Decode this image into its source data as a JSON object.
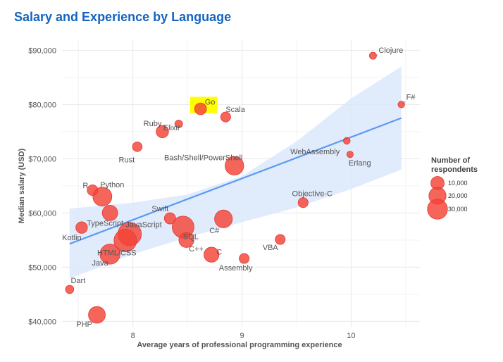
{
  "chart_data": {
    "type": "scatter",
    "title": "Salary and Experience by Language",
    "xlabel": "Average years of professional programming experience",
    "ylabel": "Median salary (USD)",
    "xlim": [
      7.35,
      10.63
    ],
    "ylim": [
      39000,
      92000
    ],
    "x_ticks": [
      8,
      9,
      10
    ],
    "x_tick_labels": [
      "8",
      "9",
      "10"
    ],
    "y_ticks": [
      40000,
      50000,
      60000,
      70000,
      80000,
      90000
    ],
    "y_tick_labels": [
      "$40,000",
      "$50,000",
      "$60,000",
      "$70,000",
      "$80,000",
      "$90,000"
    ],
    "grid": true,
    "point_color": "#f44336",
    "trend_color": "#5b9bef",
    "band_color": "#dbe8fb",
    "highlight_color": "#ffff00",
    "highlighted": "Go",
    "points": [
      {
        "name": "Clojure",
        "x": 10.2,
        "y": 89000,
        "respondents": 1000
      },
      {
        "name": "F#",
        "x": 10.46,
        "y": 80000,
        "respondents": 700
      },
      {
        "name": "Go",
        "x": 8.62,
        "y": 79200,
        "respondents": 7000
      },
      {
        "name": "Scala",
        "x": 8.85,
        "y": 77700,
        "respondents": 4000
      },
      {
        "name": "Elixir",
        "x": 8.42,
        "y": 76400,
        "respondents": 1500
      },
      {
        "name": "Ruby",
        "x": 8.27,
        "y": 75000,
        "respondents": 8000
      },
      {
        "name": "Rust",
        "x": 8.04,
        "y": 72200,
        "respondents": 3500
      },
      {
        "name": "WebAssembly",
        "x": 9.96,
        "y": 73300,
        "respondents": 800
      },
      {
        "name": "Erlang",
        "x": 9.99,
        "y": 70800,
        "respondents": 600
      },
      {
        "name": "Bash/Shell/PowerShell",
        "x": 8.93,
        "y": 68700,
        "respondents": 25000
      },
      {
        "name": "R",
        "x": 7.63,
        "y": 64200,
        "respondents": 5000
      },
      {
        "name": "Python",
        "x": 7.72,
        "y": 63000,
        "respondents": 26000
      },
      {
        "name": "Objective-C",
        "x": 9.56,
        "y": 61900,
        "respondents": 4000
      },
      {
        "name": "TypeScript",
        "x": 7.79,
        "y": 60000,
        "respondents": 15000
      },
      {
        "name": "Swift",
        "x": 8.34,
        "y": 59000,
        "respondents": 6000
      },
      {
        "name": "C#",
        "x": 8.83,
        "y": 58900,
        "respondents": 22000
      },
      {
        "name": "Kotlin",
        "x": 7.53,
        "y": 57300,
        "respondents": 6500
      },
      {
        "name": "SQL",
        "x": 8.46,
        "y": 57400,
        "respondents": 37000
      },
      {
        "name": "JavaScript",
        "x": 7.97,
        "y": 56100,
        "respondents": 44000
      },
      {
        "name": "HTML/CSS",
        "x": 7.93,
        "y": 54900,
        "respondents": 40000
      },
      {
        "name": "VBA",
        "x": 9.35,
        "y": 55100,
        "respondents": 4000
      },
      {
        "name": "C++",
        "x": 8.49,
        "y": 55000,
        "respondents": 14000
      },
      {
        "name": "C",
        "x": 8.72,
        "y": 52300,
        "respondents": 14000
      },
      {
        "name": "Java",
        "x": 7.79,
        "y": 52400,
        "respondents": 30000
      },
      {
        "name": "Assembly",
        "x": 9.02,
        "y": 51600,
        "respondents": 4000
      },
      {
        "name": "Dart",
        "x": 7.42,
        "y": 45900,
        "respondents": 2000
      },
      {
        "name": "PHP",
        "x": 7.67,
        "y": 41200,
        "respondents": 19000
      }
    ],
    "trend_line": {
      "x": [
        7.42,
        10.46
      ],
      "y": [
        54300,
        77500
      ]
    },
    "confidence_band": {
      "x": [
        7.42,
        8.0,
        8.5,
        9.0,
        9.5,
        10.0,
        10.46
      ],
      "upper": [
        60800,
        61900,
        63400,
        66800,
        73200,
        81100,
        87000
      ],
      "lower": [
        47900,
        52400,
        55500,
        58300,
        61000,
        64400,
        68000
      ]
    },
    "legend": {
      "title": "Number of respondents",
      "entries": [
        {
          "label": "10,000",
          "value": 10000
        },
        {
          "label": "20,000",
          "value": 20000
        },
        {
          "label": "30,000",
          "value": 30000
        }
      ]
    }
  }
}
